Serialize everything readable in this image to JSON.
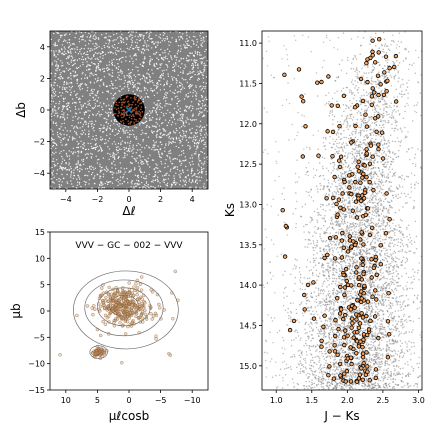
{
  "chart_data": [
    {
      "panel": "sky-map",
      "type": "scatter",
      "xlabel": "Δℓ",
      "ylabel": "Δb",
      "xlim": [
        -5,
        5
      ],
      "ylim": [
        -5,
        5
      ],
      "xticks": [
        -4,
        -2,
        0,
        2,
        4
      ],
      "yticks": [
        -4,
        -2,
        0,
        2,
        4
      ],
      "xtick_labels": [
        "−4",
        "−2",
        "0",
        "2",
        "4"
      ],
      "ytick_labels": [
        "−4",
        "−2",
        "0",
        "2",
        "4"
      ],
      "field_color": "#808080",
      "star_color": "#ffffff",
      "cluster": {
        "center": [
          0,
          0
        ],
        "radius": 1.0,
        "fill": "#000000",
        "members_color": "#a0522d"
      },
      "center_marker": {
        "x": 0,
        "y": 0,
        "symbol": "x",
        "color": "#1f77b4"
      }
    },
    {
      "panel": "proper-motion",
      "type": "scatter",
      "annotation": "VVV − GC − 002  −  VVV",
      "xlabel": "μℓcosb",
      "ylabel": "μb",
      "xlim": [
        12.5,
        -12.5
      ],
      "ylim": [
        -15,
        15
      ],
      "xticks": [
        10,
        5,
        0,
        -5,
        -10
      ],
      "yticks": [
        -15,
        -10,
        -5,
        0,
        5,
        10,
        15
      ],
      "xtick_labels": [
        "10",
        "5",
        "0",
        "−5",
        "−10"
      ],
      "ytick_labels": [
        "−15",
        "−10",
        "−5",
        "0",
        "5",
        "10",
        "15"
      ],
      "point_color": "#c8a07a",
      "contour_color": "#6e6e6e",
      "groups": [
        {
          "center": [
            0.8,
            1.0
          ],
          "spread": [
            3.2,
            3.0
          ],
          "count": 300
        },
        {
          "center": [
            4.8,
            -7.8
          ],
          "spread": [
            0.9,
            0.9
          ],
          "count": 60
        },
        {
          "center": [
            0,
            0
          ],
          "spread": [
            7.0,
            7.0
          ],
          "count": 60
        }
      ],
      "contours": [
        {
          "center": [
            0.8,
            1.0
          ],
          "radii": [
            2.3,
            2.0
          ]
        },
        {
          "center": [
            0.8,
            0.8
          ],
          "radii": [
            4.2,
            3.6
          ]
        },
        {
          "center": [
            0.8,
            0.6
          ],
          "radii": [
            6.2,
            5.3
          ]
        },
        {
          "center": [
            0.5,
            0.2
          ],
          "radii": [
            8.3,
            7.4
          ]
        },
        {
          "center": [
            4.8,
            -7.8
          ],
          "radii": [
            1.4,
            1.2
          ]
        }
      ]
    },
    {
      "panel": "cmd",
      "type": "scatter",
      "xlabel": "J − Ks",
      "ylabel": "Ks",
      "xlim": [
        0.8,
        3.05
      ],
      "ylim": [
        15.3,
        10.85
      ],
      "xticks": [
        1.0,
        1.5,
        2.0,
        2.5,
        3.0
      ],
      "yticks": [
        11.0,
        11.5,
        12.0,
        12.5,
        13.0,
        13.5,
        14.0,
        14.5,
        15.0
      ],
      "xtick_labels": [
        "1.0",
        "1.5",
        "2.0",
        "2.5",
        "3.0"
      ],
      "ytick_labels": [
        "11.0",
        "11.5",
        "12.0",
        "12.5",
        "13.0",
        "13.5",
        "14.0",
        "14.5",
        "15.0"
      ],
      "field_color": "#7f7f7f",
      "member_color": "#f4a460",
      "member_edge": "#000000",
      "sequence": [
        {
          "mag": 11.0,
          "color": 2.5
        },
        {
          "mag": 12.0,
          "color": 2.3
        },
        {
          "mag": 13.0,
          "color": 2.15
        },
        {
          "mag": 14.0,
          "color": 2.15
        },
        {
          "mag": 15.0,
          "color": 2.1
        }
      ]
    }
  ]
}
